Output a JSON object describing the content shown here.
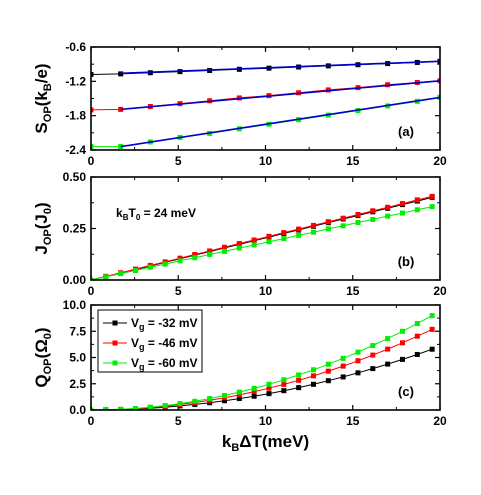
{
  "chart_data": [
    {
      "type": "line",
      "panel_label": "(a)",
      "ylabel": {
        "base": "S",
        "sub": "OP",
        "open": "(k",
        "unit_sub": "B",
        "close": "/e)"
      },
      "xlim": [
        0,
        20
      ],
      "ylim": [
        -2.4,
        -0.6
      ],
      "xticks": [
        0,
        5,
        10,
        15,
        20
      ],
      "yticks": [
        -2.4,
        -1.8,
        -1.2,
        -0.6
      ],
      "ytick_labels": [
        "-2.4",
        "-1.8",
        "-1.2",
        "-0.6"
      ],
      "xtick_labels": [
        "0",
        "5",
        "10",
        "15",
        "20"
      ],
      "series": [
        {
          "color": "#000000",
          "marker": "square",
          "x": [
            0,
            1.7,
            3.4,
            5.1,
            6.8,
            8.5,
            10.2,
            11.9,
            13.6,
            15.3,
            17.0,
            18.7,
            20
          ],
          "y": [
            -1.08,
            -1.07,
            -1.05,
            -1.03,
            -1.01,
            -0.99,
            -0.97,
            -0.95,
            -0.93,
            -0.91,
            -0.89,
            -0.87,
            -0.85
          ]
        },
        {
          "color": "#ff0000",
          "marker": "square",
          "x": [
            0,
            1.7,
            3.4,
            5.1,
            6.8,
            8.5,
            10.2,
            11.9,
            13.6,
            15.3,
            17.0,
            18.7,
            20
          ],
          "y": [
            -1.7,
            -1.69,
            -1.64,
            -1.59,
            -1.54,
            -1.49,
            -1.45,
            -1.4,
            -1.35,
            -1.31,
            -1.26,
            -1.22,
            -1.19
          ]
        },
        {
          "color": "#00ee00",
          "marker": "square",
          "x": [
            0,
            1.7,
            3.4,
            5.1,
            6.8,
            8.5,
            10.2,
            11.9,
            13.6,
            15.3,
            17.0,
            18.7,
            20
          ],
          "y": [
            -2.34,
            -2.34,
            -2.26,
            -2.18,
            -2.11,
            -2.03,
            -1.95,
            -1.87,
            -1.79,
            -1.71,
            -1.63,
            -1.55,
            -1.48
          ]
        },
        {
          "color": "#0000cc",
          "marker": "none",
          "x": [
            1.7,
            20
          ],
          "y": [
            -1.06,
            -0.85
          ]
        },
        {
          "color": "#0000cc",
          "marker": "none",
          "x": [
            1.7,
            20
          ],
          "y": [
            -1.69,
            -1.19
          ]
        },
        {
          "color": "#0000cc",
          "marker": "none",
          "x": [
            1.7,
            20
          ],
          "y": [
            -2.34,
            -1.48
          ]
        }
      ]
    },
    {
      "type": "line",
      "panel_label": "(b)",
      "ylabel": {
        "base": "J",
        "sub": "OP",
        "open": "(J",
        "unit_sub": "0",
        "close": ")"
      },
      "annotation": {
        "base": "k",
        "sub1": "B",
        "mid": "T",
        "sub2": "0",
        "rest": " = 24 meV"
      },
      "xlim": [
        0,
        20
      ],
      "ylim": [
        0,
        0.5
      ],
      "xticks": [
        0,
        5,
        10,
        15,
        20
      ],
      "yticks": [
        0,
        0.25,
        0.5
      ],
      "ytick_labels": [
        "0.00",
        "0.25",
        "0.50"
      ],
      "xtick_labels": [
        "0",
        "5",
        "10",
        "15",
        "20"
      ],
      "series": [
        {
          "color": "#000000",
          "marker": "square",
          "x": [
            0,
            0.85,
            1.7,
            2.55,
            3.4,
            4.25,
            5.1,
            5.95,
            6.8,
            7.65,
            8.5,
            9.35,
            10.2,
            11.05,
            11.9,
            12.75,
            13.6,
            14.45,
            15.3,
            16.15,
            17.0,
            17.85,
            18.7,
            19.55
          ],
          "y": [
            0,
            0.016,
            0.034,
            0.051,
            0.068,
            0.086,
            0.103,
            0.121,
            0.138,
            0.156,
            0.173,
            0.191,
            0.208,
            0.226,
            0.243,
            0.261,
            0.278,
            0.296,
            0.313,
            0.331,
            0.348,
            0.366,
            0.383,
            0.401
          ]
        },
        {
          "color": "#ff0000",
          "marker": "square",
          "x": [
            0,
            0.85,
            1.7,
            2.55,
            3.4,
            4.25,
            5.1,
            5.95,
            6.8,
            7.65,
            8.5,
            9.35,
            10.2,
            11.05,
            11.9,
            12.75,
            13.6,
            14.45,
            15.3,
            16.15,
            17.0,
            17.85,
            18.7,
            19.55
          ],
          "y": [
            0,
            0.018,
            0.035,
            0.053,
            0.071,
            0.088,
            0.106,
            0.124,
            0.141,
            0.159,
            0.177,
            0.194,
            0.212,
            0.23,
            0.247,
            0.265,
            0.283,
            0.3,
            0.318,
            0.336,
            0.353,
            0.371,
            0.389,
            0.406
          ]
        },
        {
          "color": "#00ee00",
          "marker": "square",
          "x": [
            0,
            0.85,
            1.7,
            2.55,
            3.4,
            4.25,
            5.1,
            5.95,
            6.8,
            7.65,
            8.5,
            9.35,
            10.2,
            11.05,
            11.9,
            12.75,
            13.6,
            14.45,
            15.3,
            16.15,
            17.0,
            17.85,
            18.7,
            19.55
          ],
          "y": [
            0,
            0.015,
            0.031,
            0.046,
            0.062,
            0.077,
            0.093,
            0.108,
            0.124,
            0.139,
            0.155,
            0.17,
            0.186,
            0.201,
            0.217,
            0.232,
            0.248,
            0.263,
            0.279,
            0.294,
            0.31,
            0.325,
            0.341,
            0.356
          ]
        }
      ]
    },
    {
      "type": "line",
      "panel_label": "(c)",
      "ylabel": {
        "base": "Q",
        "sub": "OP",
        "open": "(Ω",
        "unit_sub": "0",
        "close": ")"
      },
      "xlabel": {
        "base": "k",
        "sub": "B",
        "rest": "ΔT(meV)"
      },
      "xlim": [
        0,
        20
      ],
      "ylim": [
        0,
        10
      ],
      "xticks": [
        0,
        5,
        10,
        15,
        20
      ],
      "yticks": [
        0,
        2.5,
        5,
        7.5,
        10
      ],
      "ytick_labels": [
        "0.0",
        "2.5",
        "5.0",
        "7.5",
        "10.0"
      ],
      "xtick_labels": [
        "0",
        "5",
        "10",
        "15",
        "20"
      ],
      "legend": [
        {
          "base": "V",
          "sub": "g",
          "rest": " = -32 mV",
          "color": "#000000"
        },
        {
          "base": "V",
          "sub": "g",
          "rest": " = -46 mV",
          "color": "#ff0000"
        },
        {
          "base": "V",
          "sub": "g",
          "rest": " = -60 mV",
          "color": "#00ee00"
        }
      ],
      "series": [
        {
          "color": "#000000",
          "marker": "square",
          "x": [
            0,
            0.85,
            1.7,
            2.55,
            3.4,
            4.25,
            5.1,
            5.95,
            6.8,
            7.65,
            8.5,
            9.35,
            10.2,
            11.05,
            11.9,
            12.75,
            13.6,
            14.45,
            15.3,
            16.15,
            17.0,
            17.85,
            18.7,
            19.55
          ],
          "y": [
            0,
            0.01,
            0.04,
            0.09,
            0.17,
            0.27,
            0.39,
            0.53,
            0.69,
            0.88,
            1.09,
            1.31,
            1.56,
            1.84,
            2.13,
            2.45,
            2.79,
            3.15,
            3.54,
            3.94,
            4.37,
            4.82,
            5.29,
            5.79
          ]
        },
        {
          "color": "#ff0000",
          "marker": "square",
          "x": [
            0,
            0.85,
            1.7,
            2.55,
            3.4,
            4.25,
            5.1,
            5.95,
            6.8,
            7.65,
            8.5,
            9.35,
            10.2,
            11.05,
            11.9,
            12.75,
            13.6,
            14.45,
            15.3,
            16.15,
            17.0,
            17.85,
            18.7,
            19.55
          ],
          "y": [
            0,
            0.02,
            0.05,
            0.12,
            0.23,
            0.36,
            0.52,
            0.71,
            0.92,
            1.17,
            1.44,
            1.75,
            2.08,
            2.44,
            2.83,
            3.25,
            3.7,
            4.18,
            4.69,
            5.23,
            5.8,
            6.4,
            7.03,
            7.68
          ]
        },
        {
          "color": "#00ee00",
          "marker": "square",
          "x": [
            0,
            0.85,
            1.7,
            2.55,
            3.4,
            4.25,
            5.1,
            5.95,
            6.8,
            7.65,
            8.5,
            9.35,
            10.2,
            11.05,
            11.9,
            12.75,
            13.6,
            14.45,
            15.3,
            16.15,
            17.0,
            17.85,
            18.7,
            19.55
          ],
          "y": [
            0,
            0.02,
            0.07,
            0.15,
            0.27,
            0.42,
            0.61,
            0.83,
            1.09,
            1.38,
            1.7,
            2.06,
            2.45,
            2.88,
            3.34,
            3.83,
            4.36,
            4.92,
            5.51,
            6.14,
            6.8,
            7.5,
            8.23,
            8.99
          ]
        }
      ]
    }
  ]
}
